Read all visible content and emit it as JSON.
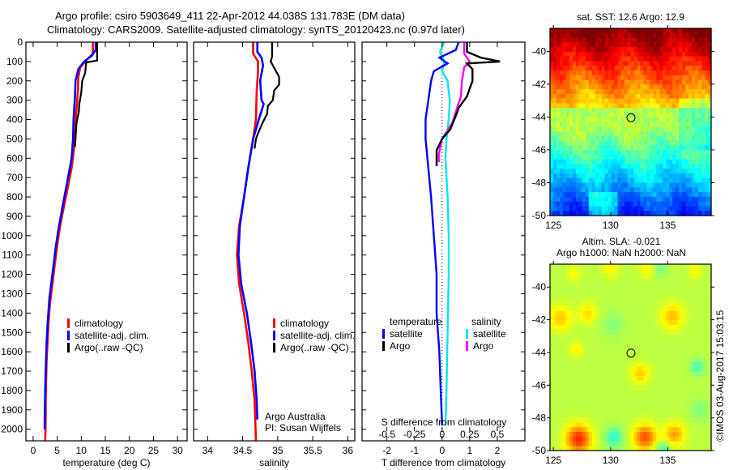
{
  "titles": {
    "line1": "Argo profile: csiro 5903649_411 22-Apr-2012 44.038S 131.783E (DM data)",
    "line2": "Climatology: CARS2009. Satellite-adjusted climatology: synTS_20120423.nc (0.97d later)"
  },
  "colors": {
    "climatology": "#ff0000",
    "satellite": "#0000ff",
    "argo": "#000000",
    "sal_satellite": "#00e5ee",
    "sal_argo": "#ff00ff"
  },
  "chart_data": [
    {
      "id": "temperature",
      "type": "line",
      "xlabel": "temperature (deg C)",
      "ylabel": "",
      "xlim": [
        -1.5,
        32
      ],
      "ylim": [
        2060,
        0
      ],
      "xticks": [
        0,
        5,
        10,
        15,
        20,
        25,
        30
      ],
      "yticks": [
        0,
        100,
        200,
        300,
        400,
        500,
        600,
        700,
        800,
        900,
        1000,
        1100,
        1200,
        1300,
        1400,
        1500,
        1600,
        1700,
        1800,
        1900,
        2000
      ],
      "legend": [
        "climatology",
        "satellite-adj. clim.",
        "Argo(..raw -QC)"
      ],
      "series": [
        {
          "name": "climatology",
          "color_key": "climatology",
          "points": [
            [
              12.4,
              0
            ],
            [
              12.4,
              60
            ],
            [
              11.2,
              90
            ],
            [
              9.8,
              130
            ],
            [
              9.4,
              180
            ],
            [
              9.3,
              250
            ],
            [
              9.0,
              350
            ],
            [
              8.7,
              450
            ],
            [
              8.5,
              550
            ],
            [
              8.0,
              650
            ],
            [
              7.2,
              750
            ],
            [
              6.4,
              850
            ],
            [
              5.6,
              950
            ],
            [
              5.0,
              1050
            ],
            [
              4.5,
              1150
            ],
            [
              4.0,
              1250
            ],
            [
              3.5,
              1350
            ],
            [
              3.2,
              1450
            ],
            [
              3.0,
              1550
            ],
            [
              2.8,
              1650
            ],
            [
              2.7,
              1750
            ],
            [
              2.6,
              1850
            ],
            [
              2.6,
              1950
            ],
            [
              2.5,
              2060
            ]
          ]
        },
        {
          "name": "satellite-adj. clim.",
          "color_key": "satellite",
          "points": [
            [
              13.0,
              0
            ],
            [
              13.0,
              40
            ],
            [
              12.2,
              70
            ],
            [
              10.6,
              100
            ],
            [
              9.4,
              140
            ],
            [
              8.8,
              200
            ],
            [
              8.7,
              280
            ],
            [
              8.4,
              400
            ],
            [
              8.3,
              500
            ],
            [
              8.0,
              600
            ],
            [
              7.1,
              720
            ],
            [
              6.2,
              840
            ],
            [
              5.3,
              960
            ],
            [
              4.7,
              1060
            ],
            [
              4.1,
              1180
            ],
            [
              3.4,
              1320
            ],
            [
              3.0,
              1460
            ],
            [
              2.8,
              1560
            ],
            [
              2.6,
              1700
            ],
            [
              2.5,
              1800
            ],
            [
              2.4,
              1950
            ],
            [
              2.4,
              2000
            ]
          ]
        },
        {
          "name": "Argo",
          "color_key": "argo",
          "points": [
            [
              13.3,
              0
            ],
            [
              13.3,
              95
            ],
            [
              11.0,
              105
            ],
            [
              10.8,
              160
            ],
            [
              10.2,
              200
            ],
            [
              10.0,
              260
            ],
            [
              9.6,
              320
            ],
            [
              9.5,
              360
            ],
            [
              9.0,
              420
            ],
            [
              8.8,
              500
            ],
            [
              8.7,
              540
            ]
          ]
        }
      ]
    },
    {
      "id": "salinity",
      "type": "line",
      "xlabel": "salinity",
      "xlim": [
        33.8,
        36.1
      ],
      "ylim": [
        2060,
        0
      ],
      "xticks": [
        34,
        34.5,
        35,
        35.5,
        36
      ],
      "xticklabels": [
        "34",
        "34.5",
        "35",
        "35.5",
        "36"
      ],
      "legend": [
        "climatology",
        "satellite-adj. clim.",
        "Argo(..raw -QC)"
      ],
      "annotation": [
        "Argo Australia",
        "PI: Susan Wijffels"
      ],
      "series": [
        {
          "name": "climatology",
          "color_key": "climatology",
          "points": [
            [
              34.65,
              0
            ],
            [
              34.65,
              60
            ],
            [
              34.72,
              100
            ],
            [
              34.72,
              150
            ],
            [
              34.7,
              250
            ],
            [
              34.69,
              400
            ],
            [
              34.65,
              500
            ],
            [
              34.58,
              650
            ],
            [
              34.52,
              800
            ],
            [
              34.45,
              950
            ],
            [
              34.42,
              1100
            ],
            [
              34.45,
              1250
            ],
            [
              34.52,
              1400
            ],
            [
              34.58,
              1550
            ],
            [
              34.63,
              1700
            ],
            [
              34.67,
              1850
            ],
            [
              34.69,
              2060
            ]
          ]
        },
        {
          "name": "satellite-adj. clim.",
          "color_key": "satellite",
          "points": [
            [
              34.71,
              0
            ],
            [
              34.71,
              50
            ],
            [
              34.77,
              80
            ],
            [
              34.79,
              120
            ],
            [
              34.75,
              200
            ],
            [
              34.77,
              300
            ],
            [
              34.8,
              320
            ],
            [
              34.73,
              400
            ],
            [
              34.65,
              500
            ],
            [
              34.58,
              650
            ],
            [
              34.52,
              800
            ],
            [
              34.46,
              950
            ],
            [
              34.44,
              1100
            ],
            [
              34.48,
              1250
            ],
            [
              34.56,
              1400
            ],
            [
              34.62,
              1550
            ],
            [
              34.67,
              1700
            ],
            [
              34.7,
              1850
            ],
            [
              34.71,
              1950
            ]
          ]
        },
        {
          "name": "Argo",
          "color_key": "argo",
          "points": [
            [
              34.92,
              0
            ],
            [
              34.92,
              75
            ],
            [
              34.9,
              100
            ],
            [
              35.02,
              180
            ],
            [
              35.02,
              220
            ],
            [
              34.95,
              250
            ],
            [
              34.93,
              300
            ],
            [
              34.86,
              330
            ],
            [
              34.85,
              370
            ],
            [
              34.78,
              420
            ],
            [
              34.72,
              470
            ],
            [
              34.69,
              500
            ],
            [
              34.67,
              550
            ]
          ]
        }
      ]
    },
    {
      "id": "differences",
      "type": "line",
      "xlabel": "T difference from climatology",
      "top_xlabel": "S difference from climatology",
      "xlim": [
        -2.9,
        3.0
      ],
      "ylim": [
        2060,
        0
      ],
      "xticks": [
        -2,
        -1,
        0,
        1,
        2
      ],
      "s_xticks": [
        -0.5,
        -0.25,
        0,
        0.25,
        0.5
      ],
      "s_xticklabels": [
        "-0.5",
        "-0.25",
        "0",
        "0.25",
        "0.5"
      ],
      "legend": {
        "temperature": {
          "title": "temperature",
          "entries": [
            "satellite",
            "Argo"
          ]
        },
        "salinity": {
          "title": "salinity",
          "entries": [
            "satellite",
            "Argo"
          ]
        }
      },
      "series": [
        {
          "name": "temperature satellite",
          "color_key": "satellite",
          "units": "T",
          "points": [
            [
              0.6,
              0
            ],
            [
              0.5,
              40
            ],
            [
              -0.1,
              80
            ],
            [
              0.2,
              110
            ],
            [
              -0.3,
              150
            ],
            [
              -0.4,
              200
            ],
            [
              -0.5,
              300
            ],
            [
              -0.6,
              400
            ],
            [
              -0.6,
              500
            ],
            [
              -0.5,
              650
            ],
            [
              -0.4,
              800
            ],
            [
              -0.3,
              1000
            ],
            [
              -0.2,
              1200
            ],
            [
              -0.2,
              1400
            ],
            [
              -0.1,
              1600
            ],
            [
              -0.05,
              1800
            ],
            [
              0.0,
              1980
            ]
          ]
        },
        {
          "name": "temperature Argo",
          "color_key": "argo",
          "units": "T",
          "points": [
            [
              0.9,
              0
            ],
            [
              0.9,
              50
            ],
            [
              1.4,
              80
            ],
            [
              2.1,
              100
            ],
            [
              0.9,
              110
            ],
            [
              1.1,
              140
            ],
            [
              1.1,
              200
            ],
            [
              0.9,
              280
            ],
            [
              0.6,
              340
            ],
            [
              0.5,
              380
            ],
            [
              0.3,
              450
            ],
            [
              0.0,
              500
            ],
            [
              -0.2,
              560
            ],
            [
              -0.2,
              640
            ]
          ]
        },
        {
          "name": "salinity satellite",
          "color_key": "sal_satellite",
          "units": "S",
          "points": [
            [
              0.02,
              0
            ],
            [
              -0.02,
              50
            ],
            [
              0.02,
              100
            ],
            [
              0.0,
              150
            ],
            [
              0.05,
              200
            ],
            [
              0.07,
              300
            ],
            [
              0.06,
              400
            ],
            [
              0.04,
              500
            ],
            [
              0.03,
              600
            ],
            [
              0.05,
              800
            ],
            [
              0.06,
              1000
            ],
            [
              0.06,
              1200
            ],
            [
              0.05,
              1500
            ],
            [
              0.04,
              1800
            ],
            [
              0.03,
              1980
            ]
          ]
        },
        {
          "name": "salinity Argo",
          "color_key": "sal_argo",
          "units": "S",
          "points": [
            [
              0.2,
              0
            ],
            [
              0.2,
              60
            ],
            [
              0.25,
              100
            ],
            [
              0.2,
              130
            ],
            [
              0.18,
              200
            ],
            [
              0.17,
              280
            ],
            [
              0.13,
              350
            ],
            [
              0.09,
              420
            ],
            [
              0.0,
              500
            ],
            [
              -0.03,
              580
            ],
            [
              -0.03,
              620
            ]
          ]
        }
      ]
    },
    {
      "id": "sst_map",
      "type": "heatmap",
      "title": "sat. SST: 12.6 Argo: 12.9",
      "xlim": [
        124.7,
        138.8
      ],
      "ylim": [
        -50,
        -38.6
      ],
      "xticks": [
        125,
        130,
        135
      ],
      "yticks": [
        -40,
        -42,
        -44,
        -46,
        -48,
        -50
      ],
      "marker": {
        "lon": 131.783,
        "lat": -44.038
      },
      "field_description": "SST decreasing southward: red/orange north of -41, yellow -42 to -44, green -44 to -47, cyan -48, blue south of -49"
    },
    {
      "id": "sla_map",
      "type": "heatmap",
      "title": "Altim. SLA: -0.021",
      "subtitle": "Argo h1000: NaN h2000: NaN",
      "xlim": [
        124.7,
        138.8
      ],
      "ylim": [
        -50,
        -38.6
      ],
      "xticks": [
        125,
        130,
        135
      ],
      "yticks": [
        -40,
        -42,
        -44,
        -46,
        -48,
        -50
      ],
      "marker": {
        "lon": 131.783,
        "lat": -44.038
      },
      "field_description": "Mostly green near-zero SLA with yellow/orange highs near 127E and 133E at -49, cyan lows near 130E -49 and 137.5E -45"
    }
  ],
  "credit": "©IMOS 03-Aug-2017 15:03:15"
}
